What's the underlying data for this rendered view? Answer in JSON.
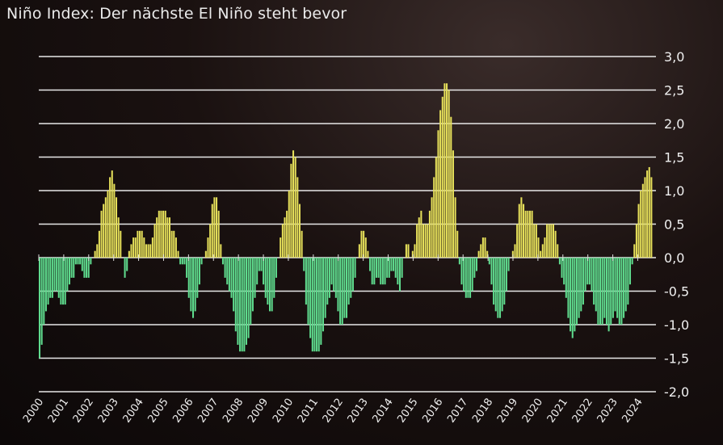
{
  "chart_data": {
    "type": "bar",
    "title": "Niño Index: Der nächste El Niño steht bevor",
    "xlabel": "",
    "ylabel": "",
    "ylim": [
      -2.0,
      3.0
    ],
    "yticks": [
      "3,0",
      "2,5",
      "2,0",
      "1,5",
      "1,0",
      "0,5",
      "0,0",
      "-0,5",
      "-1,0",
      "-1,5",
      "-2,0"
    ],
    "ytick_values": [
      3.0,
      2.5,
      2.0,
      1.5,
      1.0,
      0.5,
      0.0,
      -0.5,
      -1.0,
      -1.5,
      -2.0
    ],
    "x_tick_labels": [
      "2000",
      "2001",
      "2002",
      "2003",
      "2004",
      "2005",
      "2006",
      "2007",
      "2008",
      "2009",
      "2010",
      "2011",
      "2012",
      "2013",
      "2014",
      "2015",
      "2016",
      "2017",
      "2018",
      "2019",
      "2020",
      "2021",
      "2022",
      "2023",
      "2024"
    ],
    "grid": true,
    "y_axis_position": "right",
    "frequency": "monthly",
    "start": "2000-01",
    "colors": {
      "positive": "#e6e05a",
      "negative": "#5fdc8e",
      "grid": "#e8e8e8"
    },
    "values": [
      -1.5,
      -1.3,
      -1.0,
      -0.8,
      -0.7,
      -0.6,
      -0.6,
      -0.5,
      -0.5,
      -0.6,
      -0.7,
      -0.7,
      -0.7,
      -0.5,
      -0.4,
      -0.3,
      -0.3,
      -0.1,
      -0.1,
      -0.1,
      -0.2,
      -0.3,
      -0.3,
      -0.3,
      -0.1,
      0.0,
      0.1,
      0.2,
      0.4,
      0.7,
      0.8,
      0.9,
      1.0,
      1.2,
      1.3,
      1.1,
      0.9,
      0.6,
      0.4,
      0.0,
      -0.3,
      -0.2,
      0.1,
      0.2,
      0.3,
      0.3,
      0.4,
      0.4,
      0.4,
      0.3,
      0.2,
      0.2,
      0.2,
      0.3,
      0.5,
      0.6,
      0.7,
      0.7,
      0.7,
      0.7,
      0.6,
      0.6,
      0.4,
      0.4,
      0.3,
      0.1,
      -0.1,
      -0.1,
      -0.1,
      -0.3,
      -0.6,
      -0.8,
      -0.9,
      -0.8,
      -0.6,
      -0.4,
      -0.1,
      0.0,
      0.1,
      0.3,
      0.5,
      0.8,
      0.9,
      0.9,
      0.7,
      0.2,
      -0.1,
      -0.3,
      -0.4,
      -0.5,
      -0.6,
      -0.8,
      -1.1,
      -1.3,
      -1.4,
      -1.4,
      -1.4,
      -1.3,
      -1.2,
      -1.0,
      -0.8,
      -0.6,
      -0.4,
      -0.2,
      -0.2,
      -0.4,
      -0.6,
      -0.7,
      -0.8,
      -0.8,
      -0.6,
      -0.3,
      0.0,
      0.3,
      0.5,
      0.6,
      0.7,
      1.0,
      1.4,
      1.6,
      1.5,
      1.2,
      0.8,
      0.4,
      -0.2,
      -0.7,
      -1.0,
      -1.2,
      -1.4,
      -1.4,
      -1.4,
      -1.4,
      -1.3,
      -1.1,
      -0.9,
      -0.7,
      -0.6,
      -0.4,
      -0.5,
      -0.6,
      -0.8,
      -1.0,
      -1.0,
      -0.9,
      -0.9,
      -0.7,
      -0.6,
      -0.5,
      -0.3,
      0.0,
      0.2,
      0.4,
      0.4,
      0.3,
      0.1,
      -0.2,
      -0.4,
      -0.4,
      -0.3,
      -0.3,
      -0.4,
      -0.4,
      -0.4,
      -0.3,
      -0.3,
      -0.2,
      -0.2,
      -0.3,
      -0.4,
      -0.5,
      -0.3,
      0.0,
      0.2,
      0.2,
      0.0,
      0.1,
      0.2,
      0.5,
      0.6,
      0.7,
      0.5,
      0.5,
      0.5,
      0.7,
      0.9,
      1.2,
      1.5,
      1.9,
      2.2,
      2.4,
      2.6,
      2.6,
      2.5,
      2.1,
      1.6,
      0.9,
      0.4,
      -0.1,
      -0.4,
      -0.5,
      -0.6,
      -0.6,
      -0.6,
      -0.5,
      -0.3,
      -0.2,
      0.1,
      0.2,
      0.3,
      0.3,
      0.1,
      -0.1,
      -0.4,
      -0.7,
      -0.8,
      -0.9,
      -0.9,
      -0.8,
      -0.7,
      -0.5,
      -0.2,
      0.0,
      0.1,
      0.2,
      0.5,
      0.8,
      0.9,
      0.8,
      0.7,
      0.7,
      0.7,
      0.7,
      0.5,
      0.5,
      0.3,
      0.1,
      0.2,
      0.3,
      0.5,
      0.5,
      0.5,
      0.5,
      0.4,
      0.2,
      -0.1,
      -0.3,
      -0.4,
      -0.6,
      -0.9,
      -1.1,
      -1.2,
      -1.1,
      -1.0,
      -0.9,
      -0.8,
      -0.7,
      -0.5,
      -0.4,
      -0.4,
      -0.5,
      -0.7,
      -0.8,
      -1.0,
      -1.0,
      -1.0,
      -0.9,
      -1.0,
      -1.1,
      -1.0,
      -0.9,
      -0.8,
      -0.9,
      -1.0,
      -1.0,
      -0.9,
      -0.8,
      -0.7,
      -0.4,
      -0.1,
      0.2,
      0.5,
      0.8,
      1.0,
      1.1,
      1.2,
      1.3,
      1.35,
      1.2
    ]
  }
}
